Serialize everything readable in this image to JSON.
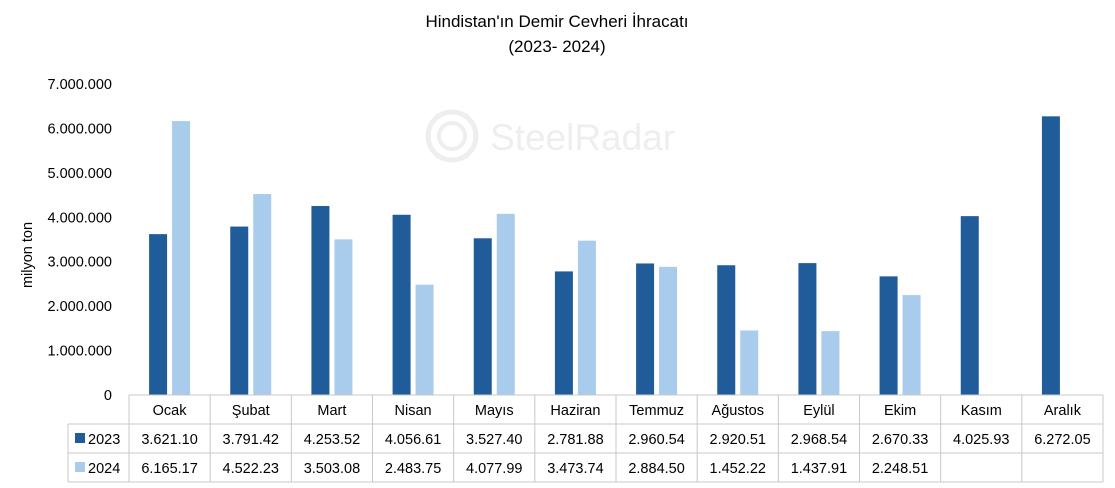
{
  "chart_data": {
    "type": "bar",
    "title": "Hindistan'ın Demir Cevheri İhracatı",
    "subtitle": "(2023- 2024)",
    "ylabel": "milyon ton",
    "ylim": [
      0,
      7000000
    ],
    "yticks": [
      0,
      1000000,
      2000000,
      3000000,
      4000000,
      5000000,
      6000000,
      7000000
    ],
    "ytick_labels": [
      "0",
      "1.000.000",
      "2.000.000",
      "3.000.000",
      "4.000.000",
      "5.000.000",
      "6.000.000",
      "7.000.000"
    ],
    "categories": [
      "Ocak",
      "Şubat",
      "Mart",
      "Nisan",
      "Mayıs",
      "Haziran",
      "Temmuz",
      "Ağustos",
      "Eylül",
      "Ekim",
      "Kasım",
      "Aralık"
    ],
    "series": [
      {
        "name": "2023",
        "color": "#1f5c99",
        "values": [
          3621100,
          3791420,
          4253520,
          4056610,
          3527400,
          2781880,
          2960540,
          2920510,
          2968540,
          2670330,
          4025930,
          6272050
        ],
        "labels": [
          "3.621.10",
          "3.791.42",
          "4.253.52",
          "4.056.61",
          "3.527.40",
          "2.781.88",
          "2.960.54",
          "2.920.51",
          "2.968.54",
          "2.670.33",
          "4.025.93",
          "6.272.05"
        ]
      },
      {
        "name": "2024",
        "color": "#a9cbec",
        "values": [
          6165170,
          4522230,
          3503080,
          2483750,
          4077990,
          3473740,
          2884500,
          1452220,
          1437910,
          2248510,
          null,
          null
        ],
        "labels": [
          "6.165.17",
          "4.522.23",
          "3.503.08",
          "2.483.75",
          "4.077.99",
          "3.473.74",
          "2.884.50",
          "1.452.22",
          "1.437.91",
          "2.248.51",
          "",
          ""
        ]
      }
    ],
    "grid": false,
    "legend": "data-table",
    "watermark": "SteelRadar"
  }
}
